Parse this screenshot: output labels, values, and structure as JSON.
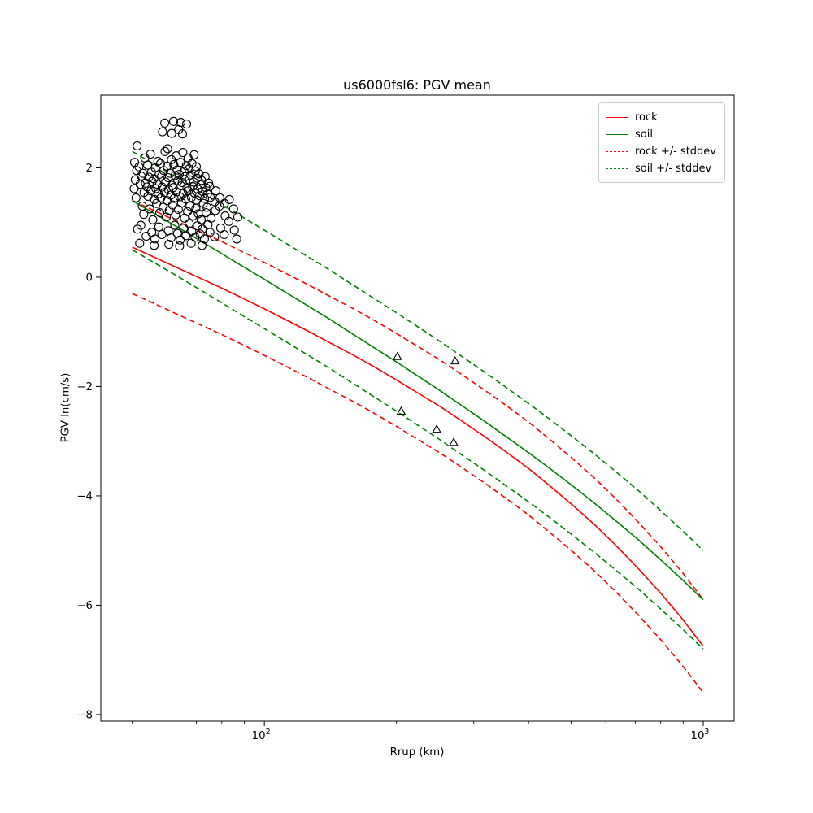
{
  "figure": {
    "title": "us6000fsl6: PGV mean",
    "xlabel": "Rrup (km)",
    "ylabel": "PGV ln(cm/s)"
  },
  "axes": {
    "x": {
      "scale": "log",
      "major_ticks": [
        {
          "value": 100,
          "base": "10",
          "exp": "2"
        },
        {
          "value": 1000,
          "base": "10",
          "exp": "3"
        }
      ],
      "minor_ticks": [
        50,
        60,
        70,
        80,
        90,
        200,
        300,
        400,
        500,
        600,
        700,
        800,
        900
      ]
    },
    "y": {
      "ticks": [
        {
          "value": 2,
          "label": "2"
        },
        {
          "value": 0,
          "label": "0"
        },
        {
          "value": -2,
          "label": "−2"
        },
        {
          "value": -4,
          "label": "−4"
        },
        {
          "value": -6,
          "label": "−6"
        },
        {
          "value": -8,
          "label": "−8"
        }
      ]
    }
  },
  "legend": {
    "items": [
      {
        "label": "rock",
        "color": "#ff0000",
        "dashed": false
      },
      {
        "label": "soil",
        "color": "#008000",
        "dashed": false
      },
      {
        "label": "rock +/- stddev",
        "color": "#ff0000",
        "dashed": true
      },
      {
        "label": "soil +/- stddev",
        "color": "#008000",
        "dashed": true
      }
    ]
  },
  "chart_data": {
    "type": "line",
    "title": "us6000fsl6: PGV mean",
    "xlabel": "Rrup (km)",
    "ylabel": "PGV ln(cm/s)",
    "xscale": "log",
    "xlim": [
      42.4,
      1176
    ],
    "ylim": [
      -8.12,
      3.33
    ],
    "grid": false,
    "legend_position": "upper right",
    "x": [
      50,
      56,
      63,
      71,
      80,
      90,
      100,
      112,
      126,
      141,
      159,
      178,
      200,
      224,
      252,
      283,
      317,
      356,
      400,
      449,
      504,
      566,
      635,
      713,
      800,
      898,
      1000
    ],
    "series": [
      {
        "name": "rock",
        "color": "#ff0000",
        "style": "solid",
        "values": [
          0.55,
          0.37,
          0.18,
          -0.01,
          -0.2,
          -0.4,
          -0.58,
          -0.78,
          -0.99,
          -1.2,
          -1.42,
          -1.64,
          -1.88,
          -2.12,
          -2.37,
          -2.64,
          -2.91,
          -3.2,
          -3.5,
          -3.83,
          -4.17,
          -4.53,
          -4.92,
          -5.34,
          -5.78,
          -6.26,
          -6.75
        ]
      },
      {
        "name": "soil",
        "color": "#008000",
        "style": "solid",
        "values": [
          1.4,
          1.17,
          0.93,
          0.68,
          0.43,
          0.18,
          -0.04,
          -0.28,
          -0.53,
          -0.77,
          -1.04,
          -1.29,
          -1.55,
          -1.81,
          -2.08,
          -2.36,
          -2.63,
          -2.92,
          -3.21,
          -3.51,
          -3.82,
          -4.14,
          -4.47,
          -4.81,
          -5.17,
          -5.54,
          -5.9
        ]
      },
      {
        "name": "rock +/- stddev",
        "color": "#ff0000",
        "style": "dashed",
        "base": "rock",
        "stddev": 0.85
      },
      {
        "name": "soil +/- stddev",
        "color": "#008000",
        "style": "dashed",
        "base": "soil",
        "stddev": 0.9
      }
    ],
    "scatter": {
      "marker": "open-circle",
      "color": "#000000",
      "points": [
        [
          50.5,
          1.62
        ],
        [
          50.8,
          1.78
        ],
        [
          51.2,
          1.95
        ],
        [
          50.6,
          2.1
        ],
        [
          51.0,
          1.45
        ],
        [
          51.4,
          0.88
        ],
        [
          51.3,
          2.4
        ],
        [
          52.1,
          1.7
        ],
        [
          52.4,
          1.85
        ],
        [
          51.8,
          2.02
        ],
        [
          52.7,
          1.3
        ],
        [
          52.3,
          0.95
        ],
        [
          52.0,
          0.62
        ],
        [
          53.2,
          1.55
        ],
        [
          53.6,
          1.72
        ],
        [
          52.9,
          1.9
        ],
        [
          53.4,
          2.18
        ],
        [
          53.1,
          1.15
        ],
        [
          53.8,
          0.75
        ],
        [
          54.3,
          1.48
        ],
        [
          54.0,
          1.65
        ],
        [
          54.6,
          1.83
        ],
        [
          54.2,
          2.05
        ],
        [
          54.8,
          1.25
        ],
        [
          55.1,
          1.58
        ],
        [
          55.5,
          1.75
        ],
        [
          55.3,
          1.92
        ],
        [
          55.0,
          2.25
        ],
        [
          55.7,
          1.05
        ],
        [
          55.4,
          0.82
        ],
        [
          56.2,
          1.42
        ],
        [
          56.6,
          1.62
        ],
        [
          56.0,
          1.8
        ],
        [
          56.4,
          2.0
        ],
        [
          56.8,
          1.35
        ],
        [
          56.3,
          0.7
        ],
        [
          56.1,
          0.58
        ],
        [
          57.3,
          1.52
        ],
        [
          57.0,
          1.7
        ],
        [
          57.6,
          1.88
        ],
        [
          57.2,
          2.12
        ],
        [
          57.8,
          1.18
        ],
        [
          57.5,
          0.92
        ],
        [
          58.1,
          1.45
        ],
        [
          58.5,
          1.65
        ],
        [
          58.3,
          1.85
        ],
        [
          58.0,
          2.08
        ],
        [
          58.6,
          2.66
        ],
        [
          58.8,
          1.28
        ],
        [
          58.4,
          0.78
        ],
        [
          59.2,
          1.55
        ],
        [
          59.6,
          1.74
        ],
        [
          59.0,
          1.95
        ],
        [
          59.4,
          2.3
        ],
        [
          59.8,
          1.1
        ],
        [
          59.3,
          2.82
        ],
        [
          60.1,
          1.4
        ],
        [
          60.5,
          1.6
        ],
        [
          60.3,
          1.82
        ],
        [
          60.0,
          2.03
        ],
        [
          60.7,
          1.22
        ],
        [
          60.4,
          0.85
        ],
        [
          60.2,
          2.35
        ],
        [
          60.6,
          0.6
        ],
        [
          61.2,
          1.5
        ],
        [
          61.6,
          1.68
        ],
        [
          61.0,
          1.9
        ],
        [
          61.4,
          2.15
        ],
        [
          61.8,
          1.32
        ],
        [
          61.3,
          0.72
        ],
        [
          61.5,
          2.63
        ],
        [
          62.3,
          1.44
        ],
        [
          62.0,
          1.64
        ],
        [
          62.6,
          1.86
        ],
        [
          62.2,
          2.06
        ],
        [
          62.8,
          1.14
        ],
        [
          62.5,
          0.95
        ],
        [
          62.1,
          2.85
        ],
        [
          63.1,
          1.56
        ],
        [
          63.5,
          1.76
        ],
        [
          63.3,
          1.96
        ],
        [
          63.0,
          2.22
        ],
        [
          63.7,
          1.24
        ],
        [
          63.4,
          0.8
        ],
        [
          63.8,
          2.7
        ],
        [
          64.2,
          1.47
        ],
        [
          64.6,
          1.67
        ],
        [
          64.0,
          1.88
        ],
        [
          64.4,
          2.1
        ],
        [
          64.8,
          1.36
        ],
        [
          64.3,
          0.68
        ],
        [
          64.5,
          2.83
        ],
        [
          64.1,
          0.57
        ],
        [
          65.3,
          1.53
        ],
        [
          65.0,
          1.73
        ],
        [
          65.6,
          1.93
        ],
        [
          65.2,
          2.28
        ],
        [
          65.8,
          1.08
        ],
        [
          65.5,
          0.9
        ],
        [
          65.1,
          2.62
        ],
        [
          66.2,
          1.43
        ],
        [
          66.6,
          1.63
        ],
        [
          66.0,
          1.84
        ],
        [
          66.4,
          2.04
        ],
        [
          66.8,
          1.2
        ],
        [
          66.3,
          0.76
        ],
        [
          66.5,
          2.8
        ],
        [
          67.1,
          1.58
        ],
        [
          67.5,
          1.78
        ],
        [
          67.3,
          1.98
        ],
        [
          67.0,
          2.18
        ],
        [
          67.7,
          1.3
        ],
        [
          67.4,
          0.98
        ],
        [
          68.2,
          1.46
        ],
        [
          68.6,
          1.66
        ],
        [
          68.0,
          1.87
        ],
        [
          68.4,
          2.08
        ],
        [
          68.8,
          1.12
        ],
        [
          68.3,
          0.84
        ],
        [
          68.1,
          0.62
        ],
        [
          69.3,
          1.54
        ],
        [
          69.0,
          1.74
        ],
        [
          69.6,
          1.94
        ],
        [
          69.2,
          2.24
        ],
        [
          69.8,
          1.26
        ],
        [
          69.5,
          0.73
        ],
        [
          70.1,
          1.41
        ],
        [
          70.5,
          1.61
        ],
        [
          70.3,
          1.81
        ],
        [
          70.0,
          2.02
        ],
        [
          70.7,
          1.16
        ],
        [
          70.4,
          0.94
        ],
        [
          71.2,
          1.49
        ],
        [
          71.6,
          1.69
        ],
        [
          71.0,
          1.89
        ],
        [
          71.8,
          1.05
        ],
        [
          71.4,
          0.79
        ],
        [
          72.3,
          1.57
        ],
        [
          72.0,
          1.77
        ],
        [
          72.6,
          1.35
        ],
        [
          72.2,
          0.88
        ],
        [
          72.1,
          0.58
        ],
        [
          73.1,
          1.44
        ],
        [
          73.5,
          1.64
        ],
        [
          73.3,
          1.84
        ],
        [
          73.7,
          1.18
        ],
        [
          73.0,
          0.7
        ],
        [
          74.2,
          1.52
        ],
        [
          74.6,
          1.72
        ],
        [
          74.0,
          1.28
        ],
        [
          74.4,
          0.96
        ],
        [
          75.3,
          1.46
        ],
        [
          75.0,
          1.66
        ],
        [
          75.6,
          1.08
        ],
        [
          75.2,
          0.82
        ],
        [
          77.1,
          1.38
        ],
        [
          77.5,
          1.58
        ],
        [
          77.3,
          1.22
        ],
        [
          77.0,
          0.74
        ],
        [
          79.2,
          1.45
        ],
        [
          79.0,
          1.3
        ],
        [
          79.5,
          0.9
        ],
        [
          81.1,
          1.35
        ],
        [
          81.4,
          1.12
        ],
        [
          81.0,
          0.78
        ],
        [
          83.2,
          1.42
        ],
        [
          83.0,
          1.02
        ],
        [
          85.1,
          1.25
        ],
        [
          85.4,
          0.86
        ],
        [
          87.0,
          1.1
        ],
        [
          86.5,
          0.7
        ]
      ]
    },
    "triangles": {
      "marker": "open-triangle",
      "color": "#000000",
      "points": [
        [
          201,
          -1.45
        ],
        [
          272,
          -1.53
        ],
        [
          205,
          -2.45
        ],
        [
          247,
          -2.78
        ],
        [
          270,
          -3.02
        ]
      ]
    }
  }
}
